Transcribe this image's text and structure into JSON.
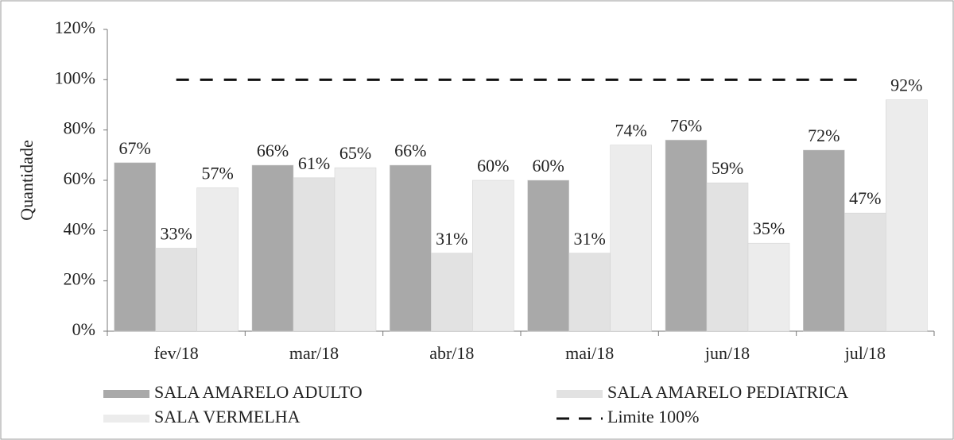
{
  "chart_data": {
    "type": "bar",
    "y_label": "Quantidade",
    "categories": [
      "fev/18",
      "mar/18",
      "abr/18",
      "mai/18",
      "jun/18",
      "jul/18"
    ],
    "series": [
      {
        "name": "SALA AMARELO ADULTO",
        "color": "#a9a9a9",
        "values": [
          67,
          66,
          66,
          60,
          76,
          72
        ],
        "value_labels": [
          "67%",
          "66%",
          "66%",
          "60%",
          "76%",
          "72%"
        ]
      },
      {
        "name": "SALA AMARELO PEDIATRICA",
        "color": "#e2e2e2",
        "values": [
          33,
          61,
          31,
          31,
          59,
          47
        ],
        "value_labels": [
          "33%",
          "61%",
          "31%",
          "31%",
          "59%",
          "47%"
        ]
      },
      {
        "name": "SALA VERMELHA",
        "color": "#ececec",
        "values": [
          57,
          65,
          60,
          74,
          35,
          92
        ],
        "value_labels": [
          "57%",
          "65%",
          "60%",
          "74%",
          "35%",
          "92%"
        ]
      },
      {
        "name": "Limite 100%",
        "type": "line",
        "line_style": "dashed",
        "color": "#111111",
        "values": [
          100,
          100,
          100,
          100,
          100,
          100
        ]
      }
    ],
    "ylim": [
      0,
      120
    ],
    "yticks": [
      {
        "value": 0,
        "label": "0%"
      },
      {
        "value": 20,
        "label": "20%"
      },
      {
        "value": 40,
        "label": "40%"
      },
      {
        "value": 60,
        "label": "60%"
      },
      {
        "value": 80,
        "label": "80%"
      },
      {
        "value": 100,
        "label": "100%"
      },
      {
        "value": 120,
        "label": "120%"
      }
    ],
    "grid": false,
    "legend": "bottom"
  }
}
